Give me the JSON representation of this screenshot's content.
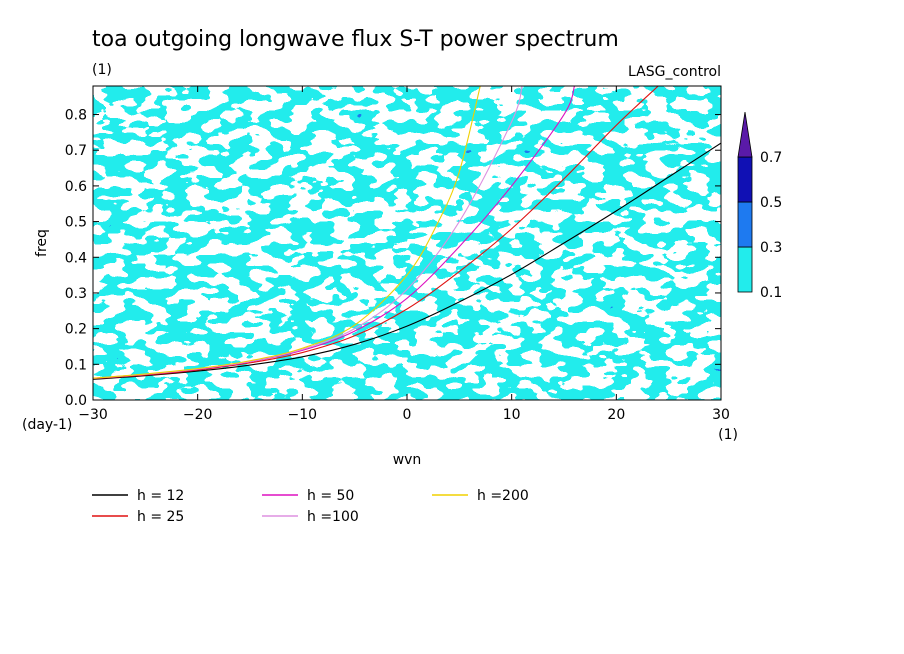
{
  "chart_data": {
    "type": "heatmap",
    "title": "toa outgoing longwave flux S-T power spectrum",
    "subtitle_left": "(1)",
    "subtitle_right": "LASG_control",
    "xlabel": "wvn",
    "ylabel": "freq",
    "x_unit": "(1)",
    "y_unit": "(day-1)",
    "xlim": [
      -30,
      30
    ],
    "ylim": [
      0,
      0.88
    ],
    "x_ticks": [
      -30,
      -20,
      -10,
      0,
      10,
      20,
      30
    ],
    "x_tick_labels": [
      "-30",
      "-20",
      "-10",
      "0",
      "10",
      "20",
      "30"
    ],
    "y_ticks": [
      0,
      0.1,
      0.2,
      0.3,
      0.4,
      0.5,
      0.6,
      0.7,
      0.8
    ],
    "y_tick_labels": [
      "0.0",
      "0.1",
      "0.2",
      "0.3",
      "0.4",
      "0.5",
      "0.6",
      "0.7",
      "0.8"
    ],
    "colorbar": {
      "levels": [
        0.1,
        0.3,
        0.5,
        0.7
      ],
      "level_labels": [
        "0.1",
        "0.3",
        "0.5",
        "0.7"
      ],
      "colors": [
        "#ffffff",
        "#22ecec",
        "#1e7af0",
        "#1010b4",
        "#5a1aa8"
      ],
      "extend": "max"
    },
    "dispersion_curves": [
      {
        "name": "h = 12",
        "h": 12,
        "color": "#000000",
        "x": [
          -30,
          -25,
          -20,
          -15,
          -10,
          -5,
          0,
          5,
          10,
          15,
          20,
          25,
          30
        ],
        "y": [
          0.058,
          0.068,
          0.081,
          0.098,
          0.121,
          0.156,
          0.207,
          0.275,
          0.352,
          0.44,
          0.53,
          0.625,
          0.72
        ]
      },
      {
        "name": "h = 25",
        "h": 25,
        "color": "#e01010",
        "x": [
          -30,
          -25,
          -20,
          -15,
          -10,
          -5,
          0,
          5,
          10,
          15,
          20,
          24
        ],
        "y": [
          0.06,
          0.07,
          0.084,
          0.104,
          0.133,
          0.18,
          0.255,
          0.36,
          0.48,
          0.62,
          0.77,
          0.88
        ]
      },
      {
        "name": "h = 50",
        "h": 50,
        "color": "#dd10c0",
        "x": [
          -30,
          -25,
          -20,
          -15,
          -10,
          -5,
          0,
          5,
          10,
          15,
          16
        ],
        "y": [
          0.061,
          0.072,
          0.086,
          0.107,
          0.139,
          0.193,
          0.285,
          0.43,
          0.6,
          0.8,
          0.88
        ]
      },
      {
        "name": "h =100",
        "h": 100,
        "color": "#dd90e0",
        "x": [
          -30,
          -25,
          -20,
          -15,
          -10,
          -5,
          0,
          5,
          10,
          11
        ],
        "y": [
          0.061,
          0.072,
          0.087,
          0.108,
          0.142,
          0.2,
          0.31,
          0.5,
          0.78,
          0.88
        ]
      },
      {
        "name": "h =200",
        "h": 200,
        "color": "#f0d000",
        "x": [
          -30,
          -25,
          -20,
          -15,
          -10,
          -5,
          0,
          3,
          5,
          7
        ],
        "y": [
          0.061,
          0.073,
          0.088,
          0.11,
          0.145,
          0.21,
          0.35,
          0.5,
          0.64,
          0.88
        ]
      }
    ],
    "grid": false
  }
}
